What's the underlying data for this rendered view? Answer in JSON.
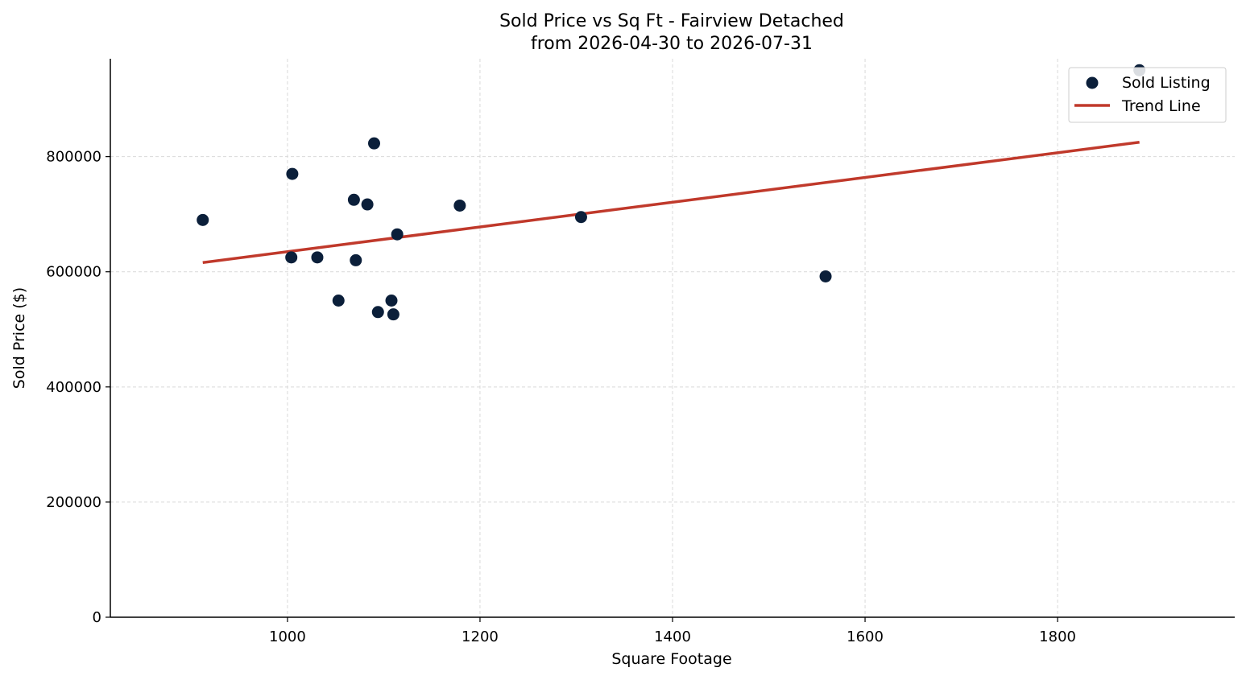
{
  "chart_data": {
    "type": "scatter",
    "title": "Sold Price vs Sq Ft - Fairview Detached",
    "subtitle": "from 2026-04-30 to 2026-07-31",
    "xlabel": "Square Footage",
    "ylabel": "Sold Price ($)",
    "xlim": [
      816,
      1984
    ],
    "ylim": [
      0,
      970000
    ],
    "x_ticks": [
      1000,
      1200,
      1400,
      1600,
      1800
    ],
    "y_ticks": [
      0,
      200000,
      400000,
      600000,
      800000
    ],
    "x_tick_labels": [
      "1000",
      "1200",
      "1400",
      "1600",
      "1800"
    ],
    "y_tick_labels": [
      "0",
      "200000",
      "400000",
      "600000",
      "800000"
    ],
    "grid": true,
    "legend_position": "top-right",
    "series": [
      {
        "name": "Sold Listing",
        "type": "scatter",
        "color": "#0b1f3a",
        "points": [
          {
            "x": 912,
            "y": 690000
          },
          {
            "x": 1004,
            "y": 625000
          },
          {
            "x": 1005,
            "y": 770000
          },
          {
            "x": 1031,
            "y": 625000
          },
          {
            "x": 1053,
            "y": 550000
          },
          {
            "x": 1069,
            "y": 725000
          },
          {
            "x": 1071,
            "y": 620000
          },
          {
            "x": 1083,
            "y": 717000
          },
          {
            "x": 1090,
            "y": 823000
          },
          {
            "x": 1094,
            "y": 530000
          },
          {
            "x": 1108,
            "y": 550000
          },
          {
            "x": 1110,
            "y": 526000
          },
          {
            "x": 1114,
            "y": 665000
          },
          {
            "x": 1179,
            "y": 715000
          },
          {
            "x": 1305,
            "y": 695000
          },
          {
            "x": 1559,
            "y": 592000
          },
          {
            "x": 1885,
            "y": 950000
          }
        ]
      },
      {
        "name": "Trend Line",
        "type": "line",
        "color": "#c0392b",
        "points": [
          {
            "x": 912,
            "y": 616000
          },
          {
            "x": 1885,
            "y": 825000
          }
        ]
      }
    ]
  }
}
